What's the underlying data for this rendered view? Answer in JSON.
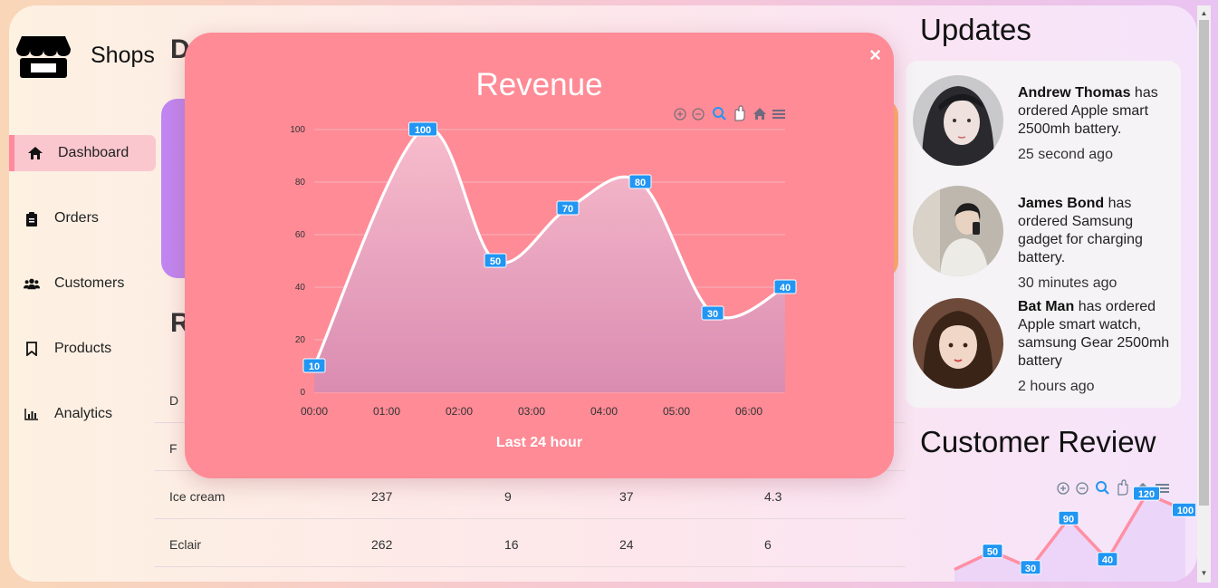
{
  "app": {
    "name": "Shops"
  },
  "sidebar": {
    "items": [
      {
        "label": "Dashboard",
        "icon": "home-icon",
        "active": true
      },
      {
        "label": "Orders",
        "icon": "clipboard-icon"
      },
      {
        "label": "Customers",
        "icon": "users-icon"
      },
      {
        "label": "Products",
        "icon": "bookmark-icon"
      },
      {
        "label": "Analytics",
        "icon": "bar-chart-icon"
      }
    ]
  },
  "main": {
    "title_partial": "D",
    "section_partial": "R",
    "table": {
      "rows": [
        [
          "D",
          "",
          "",
          "",
          ""
        ],
        [
          "F",
          "",
          "",
          "",
          ""
        ],
        [
          "Ice cream",
          "237",
          "9",
          "37",
          "4.3"
        ],
        [
          "Eclair",
          "262",
          "16",
          "24",
          "6"
        ]
      ]
    }
  },
  "updates": {
    "title": "Updates",
    "items": [
      {
        "name": "Andrew Thomas",
        "text": "has ordered Apple smart 2500mh battery.",
        "time": "25 second ago"
      },
      {
        "name": "James Bond",
        "text": "has ordered Samsung gadget for charging battery.",
        "time": "30 minutes ago"
      },
      {
        "name": "Bat Man",
        "text": "has ordered Apple smart watch, samsung Gear 2500mh battery",
        "time": "2 hours ago"
      }
    ]
  },
  "review": {
    "title": "Customer Review",
    "labels": [
      "50",
      "30",
      "90",
      "40",
      "120",
      "100"
    ],
    "values": [
      50,
      30,
      90,
      40,
      120,
      100
    ]
  },
  "modal": {
    "title": "Revenue",
    "subtitle": "Last 24 hour",
    "close_label": "×",
    "toolbar": [
      "zoom-in-icon",
      "zoom-out-icon",
      "search-zoom-icon",
      "pan-hand-icon",
      "home-icon",
      "menu-icon"
    ]
  },
  "chart_data": {
    "type": "area",
    "title": "Revenue",
    "subtitle": "Last 24 hour",
    "x": [
      "00:00",
      "01:00",
      "02:00",
      "03:00",
      "04:00",
      "05:00",
      "06:00"
    ],
    "y_ticks": [
      "0",
      "20",
      "40",
      "60",
      "80",
      "100"
    ],
    "ylim": [
      0,
      100
    ],
    "series": [
      {
        "x": [
          0,
          1.5,
          2.5,
          3.5,
          4.5,
          5.5,
          6.5
        ],
        "values": [
          10,
          100,
          50,
          70,
          80,
          30,
          40
        ]
      }
    ],
    "data_labels": [
      "10",
      "100",
      "50",
      "70",
      "80",
      "30",
      "40"
    ],
    "grid": true,
    "colors": {
      "line": "#ffffff",
      "label_bg": "#2196f3",
      "fill_top": "#f7b8c8",
      "fill_bottom": "#d88aaf"
    }
  }
}
